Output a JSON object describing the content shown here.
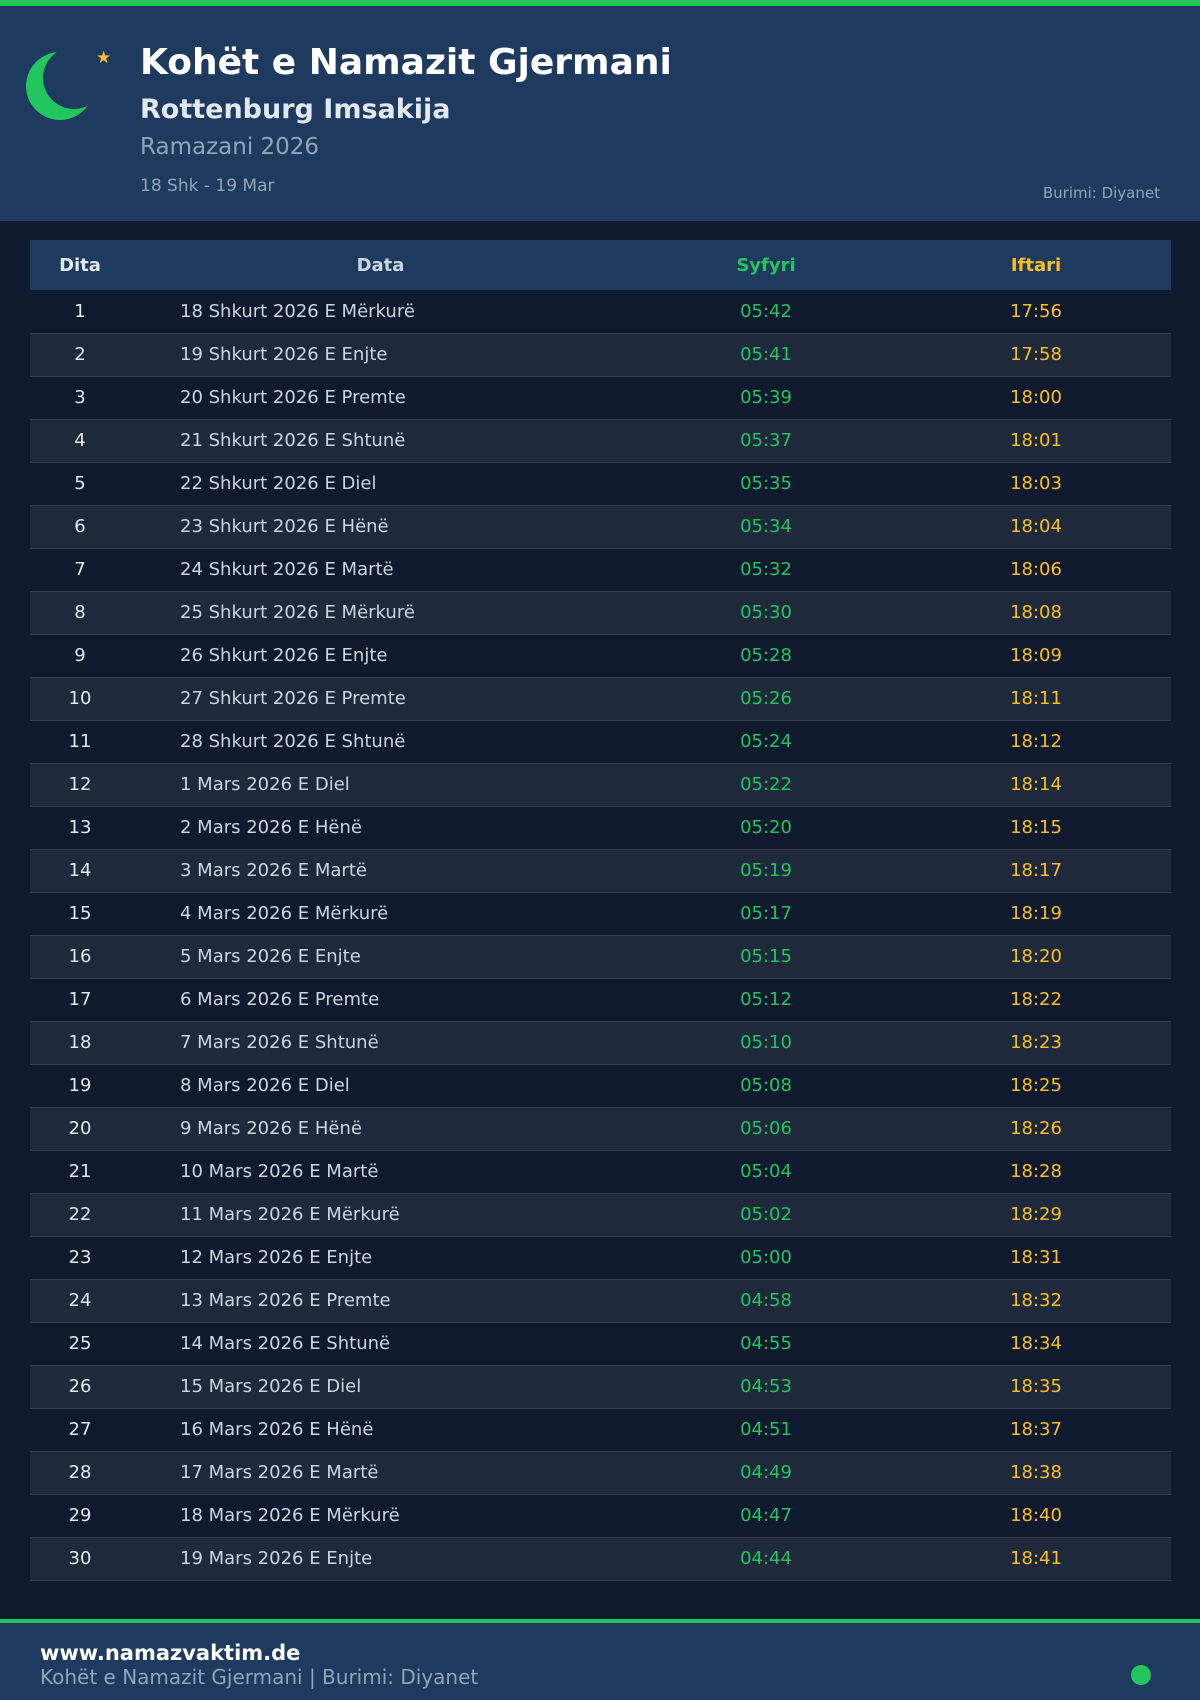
{
  "header": {
    "title": "Kohët e Namazit Gjermani",
    "subtitle": "Rottenburg Imsakija",
    "season": "Ramazani 2026",
    "range": "18 Shk - 19 Mar",
    "source": "Burimi: Diyanet"
  },
  "colors": {
    "accent": "#22c55e",
    "iftar": "#fbbf24",
    "header_bg": "#1e3a5f",
    "page_bg": "#0f1a2e"
  },
  "icons": {
    "logo": "crescent-moon-icon",
    "star": "star-icon",
    "status": "status-dot"
  },
  "table": {
    "columns": [
      "Dita",
      "Data",
      "Syfyri",
      "Iftari"
    ],
    "rows": [
      [
        "1",
        "18 Shkurt 2026 E Mërkurë",
        "05:42",
        "17:56"
      ],
      [
        "2",
        "19 Shkurt 2026 E Enjte",
        "05:41",
        "17:58"
      ],
      [
        "3",
        "20 Shkurt 2026 E Premte",
        "05:39",
        "18:00"
      ],
      [
        "4",
        "21 Shkurt 2026 E Shtunë",
        "05:37",
        "18:01"
      ],
      [
        "5",
        "22 Shkurt 2026 E Diel",
        "05:35",
        "18:03"
      ],
      [
        "6",
        "23 Shkurt 2026 E Hënë",
        "05:34",
        "18:04"
      ],
      [
        "7",
        "24 Shkurt 2026 E Martë",
        "05:32",
        "18:06"
      ],
      [
        "8",
        "25 Shkurt 2026 E Mërkurë",
        "05:30",
        "18:08"
      ],
      [
        "9",
        "26 Shkurt 2026 E Enjte",
        "05:28",
        "18:09"
      ],
      [
        "10",
        "27 Shkurt 2026 E Premte",
        "05:26",
        "18:11"
      ],
      [
        "11",
        "28 Shkurt 2026 E Shtunë",
        "05:24",
        "18:12"
      ],
      [
        "12",
        "1 Mars 2026 E Diel",
        "05:22",
        "18:14"
      ],
      [
        "13",
        "2 Mars 2026 E Hënë",
        "05:20",
        "18:15"
      ],
      [
        "14",
        "3 Mars 2026 E Martë",
        "05:19",
        "18:17"
      ],
      [
        "15",
        "4 Mars 2026 E Mërkurë",
        "05:17",
        "18:19"
      ],
      [
        "16",
        "5 Mars 2026 E Enjte",
        "05:15",
        "18:20"
      ],
      [
        "17",
        "6 Mars 2026 E Premte",
        "05:12",
        "18:22"
      ],
      [
        "18",
        "7 Mars 2026 E Shtunë",
        "05:10",
        "18:23"
      ],
      [
        "19",
        "8 Mars 2026 E Diel",
        "05:08",
        "18:25"
      ],
      [
        "20",
        "9 Mars 2026 E Hënë",
        "05:06",
        "18:26"
      ],
      [
        "21",
        "10 Mars 2026 E Martë",
        "05:04",
        "18:28"
      ],
      [
        "22",
        "11 Mars 2026 E Mërkurë",
        "05:02",
        "18:29"
      ],
      [
        "23",
        "12 Mars 2026 E Enjte",
        "05:00",
        "18:31"
      ],
      [
        "24",
        "13 Mars 2026 E Premte",
        "04:58",
        "18:32"
      ],
      [
        "25",
        "14 Mars 2026 E Shtunë",
        "04:55",
        "18:34"
      ],
      [
        "26",
        "15 Mars 2026 E Diel",
        "04:53",
        "18:35"
      ],
      [
        "27",
        "16 Mars 2026 E Hënë",
        "04:51",
        "18:37"
      ],
      [
        "28",
        "17 Mars 2026 E Martë",
        "04:49",
        "18:38"
      ],
      [
        "29",
        "18 Mars 2026 E Mërkurë",
        "04:47",
        "18:40"
      ],
      [
        "30",
        "19 Mars 2026 E Enjte",
        "04:44",
        "18:41"
      ]
    ]
  },
  "footer": {
    "site": "www.namazvaktim.de",
    "note": "Kohët e Namazit Gjermani | Burimi: Diyanet"
  }
}
